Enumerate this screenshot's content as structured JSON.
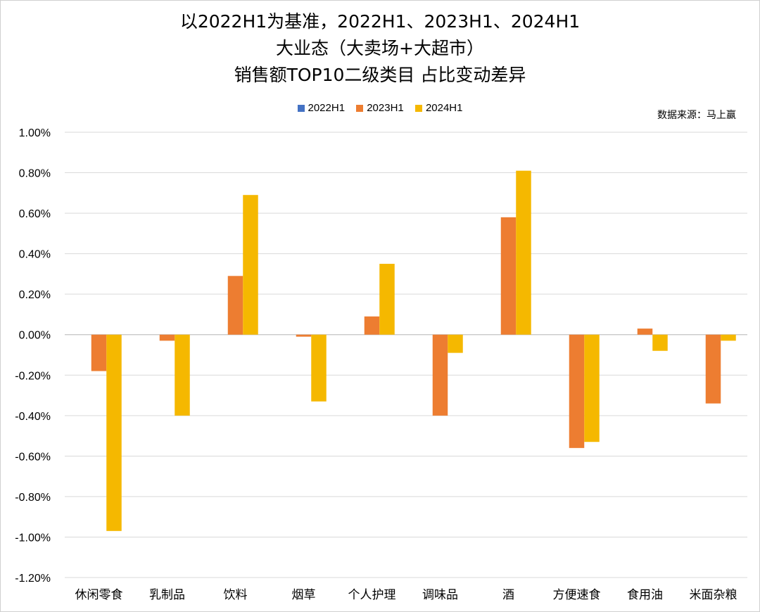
{
  "title_lines": [
    "以2022H1为基准，2022H1、2023H1、2024H1",
    "大业态（大卖场+大超市）",
    "销售额TOP10二级类目 占比变动差异"
  ],
  "source_note": "数据来源：马上赢",
  "colors": {
    "2022H1": "#4472c4",
    "2023H1": "#ed7d31",
    "2024H1": "#f5b800",
    "grid": "#d9d9d9"
  },
  "chart_data": {
    "type": "bar",
    "title": "以2022H1为基准，2022H1、2023H1、2024H1 大业态（大卖场+大超市） 销售额TOP10二级类目 占比变动差异",
    "categories": [
      "休闲零食",
      "乳制品",
      "饮料",
      "烟草",
      "个人护理",
      "调味品",
      "酒",
      "方便速食",
      "食用油",
      "米面杂粮"
    ],
    "series": [
      {
        "name": "2022H1",
        "values": [
          0,
          0,
          0,
          0,
          0,
          0,
          0,
          0,
          0,
          0
        ]
      },
      {
        "name": "2023H1",
        "values": [
          -0.18,
          -0.03,
          0.29,
          -0.01,
          0.09,
          -0.4,
          0.58,
          -0.56,
          0.03,
          -0.34
        ]
      },
      {
        "name": "2024H1",
        "values": [
          -0.97,
          -0.4,
          0.69,
          -0.33,
          0.35,
          -0.09,
          0.81,
          -0.53,
          -0.08,
          -0.03
        ]
      }
    ],
    "ylim": [
      -1.2,
      1.0
    ],
    "yticks": [
      "1.00%",
      "0.80%",
      "0.60%",
      "0.40%",
      "0.20%",
      "0.00%",
      "-0.20%",
      "-0.40%",
      "-0.60%",
      "-0.80%",
      "-1.00%",
      "-1.20%"
    ],
    "ytick_values": [
      1.0,
      0.8,
      0.6,
      0.4,
      0.2,
      0.0,
      -0.2,
      -0.4,
      -0.6,
      -0.8,
      -1.0,
      -1.2
    ],
    "unit": "%",
    "grid": true,
    "legend_position": "top"
  }
}
